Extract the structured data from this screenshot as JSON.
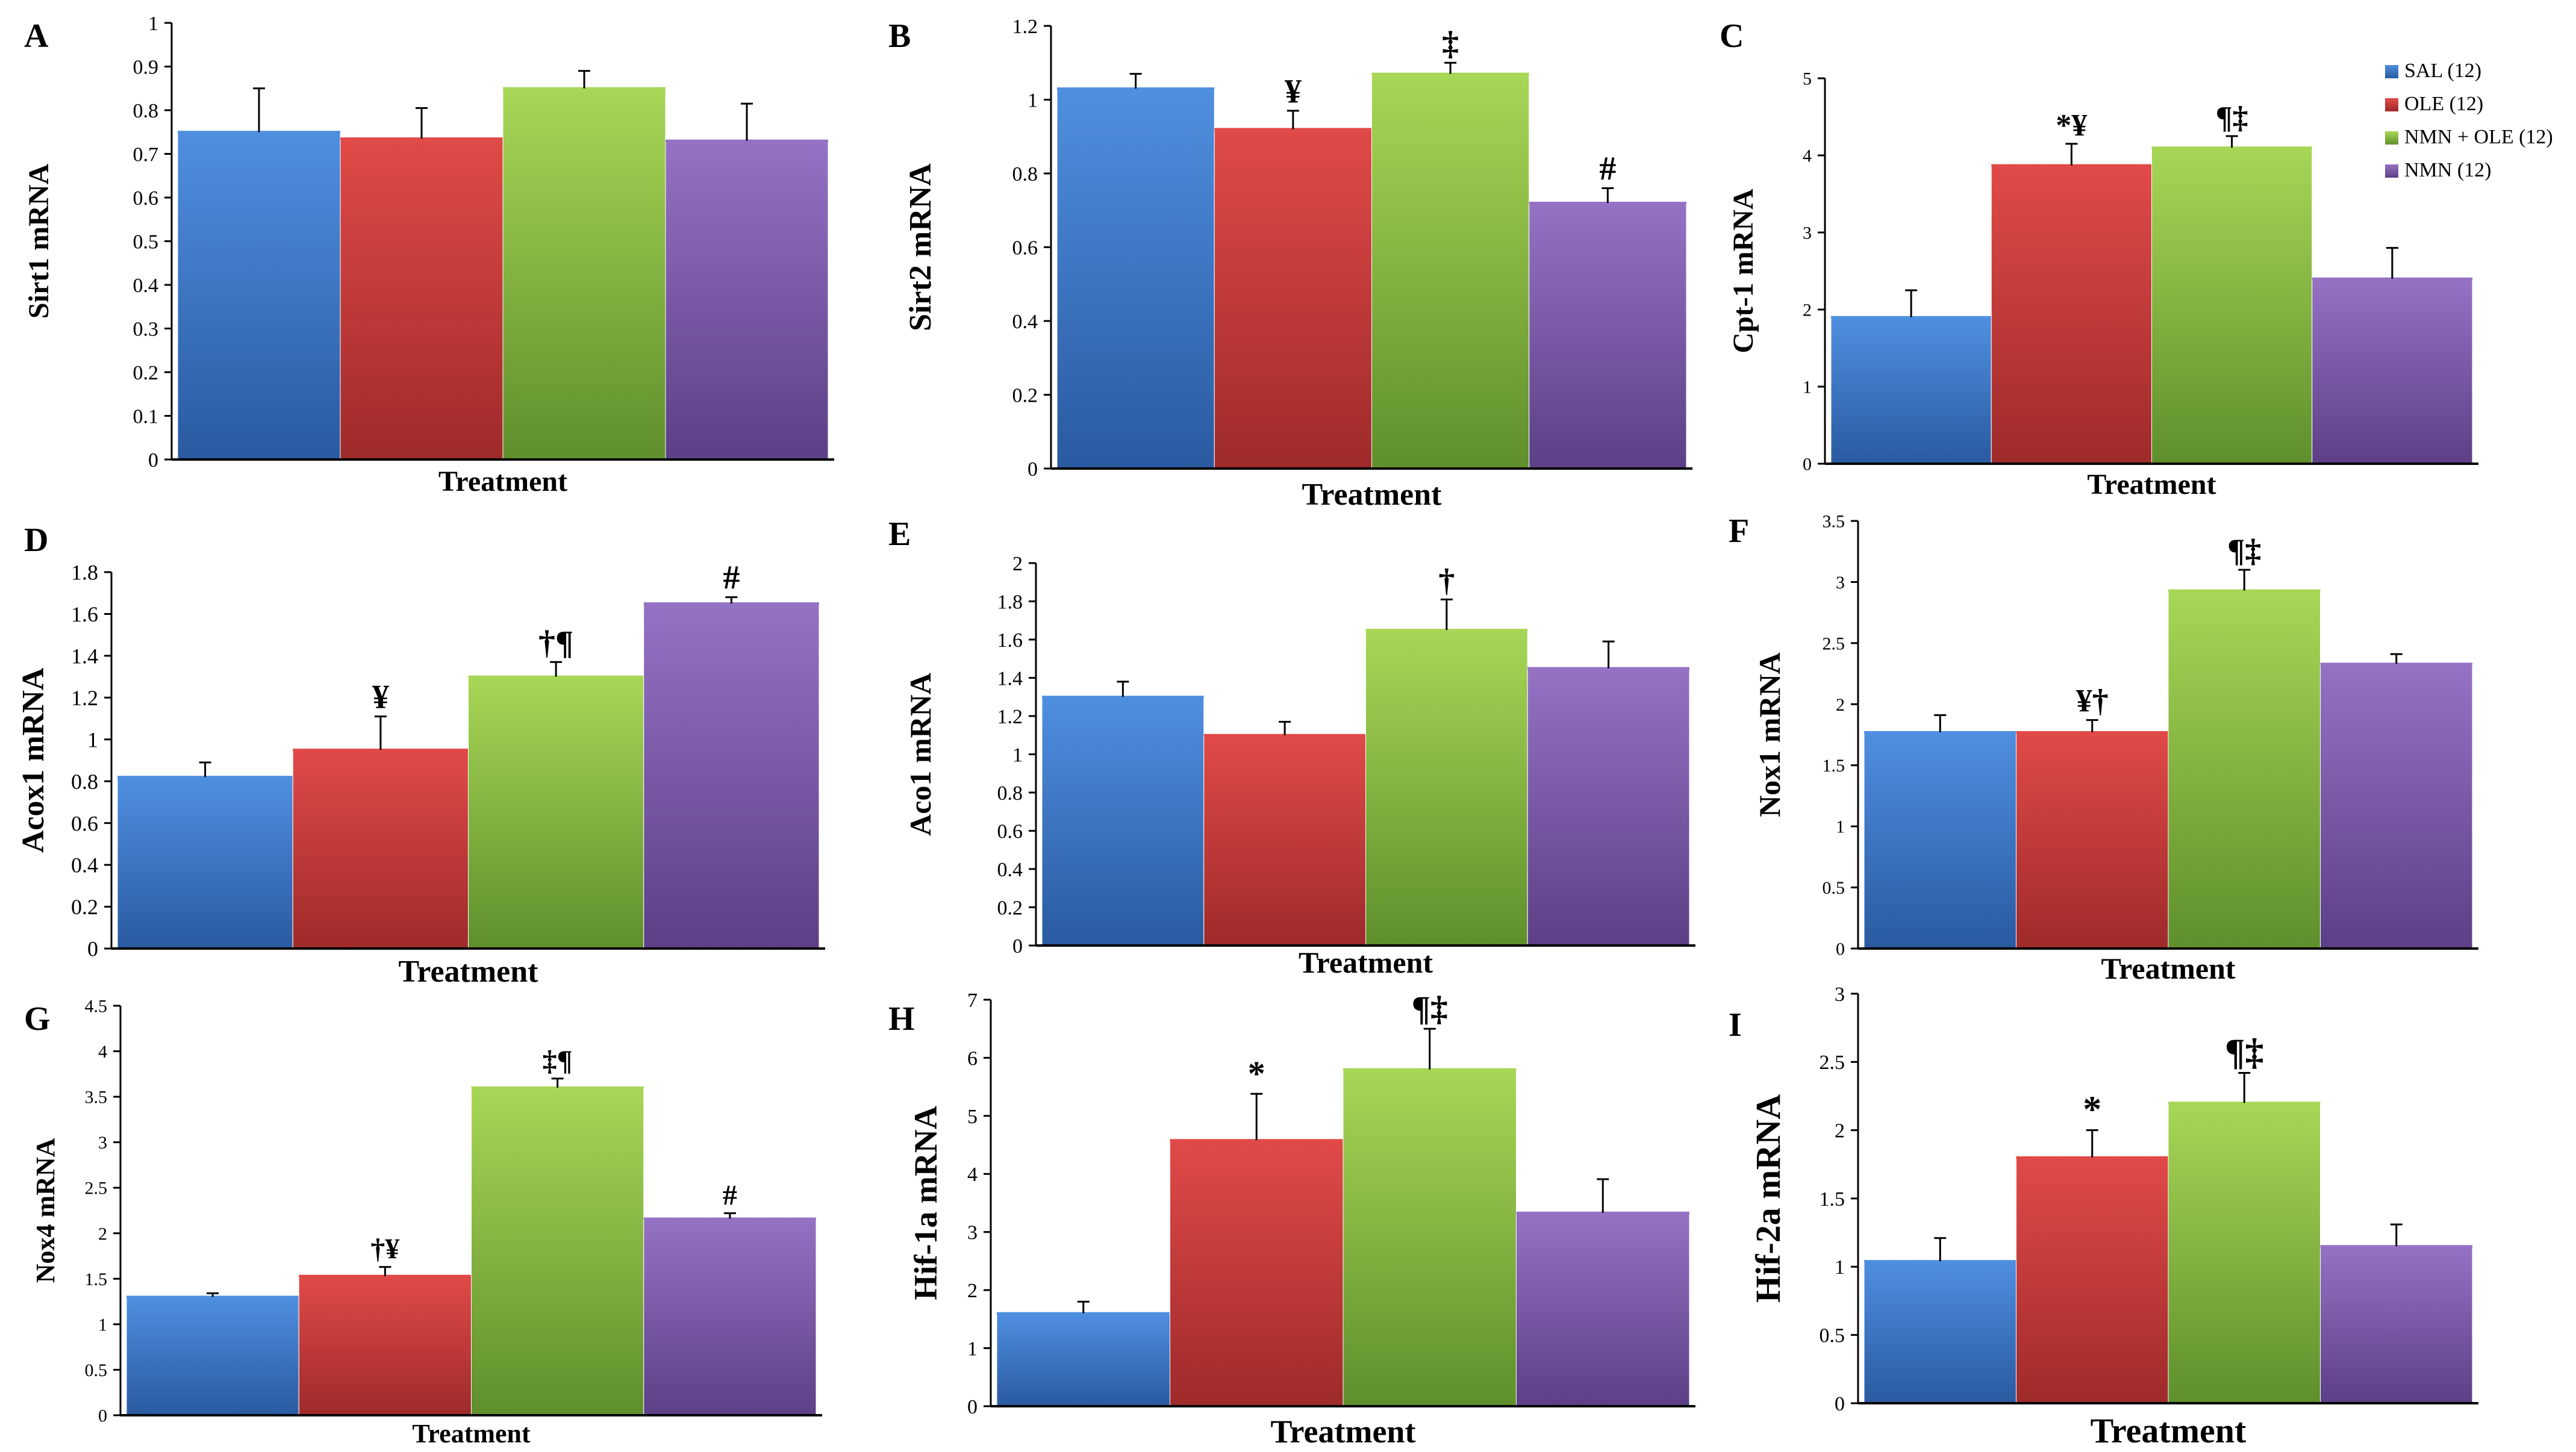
{
  "legend": {
    "entries": [
      {
        "label": "SAL (12)",
        "color": "#4a86d4"
      },
      {
        "label": "OLE (12)",
        "color": "#d94141"
      },
      {
        "label": "NMN + OLE (12)",
        "color": "#9bc845"
      },
      {
        "label": "NMN (12)",
        "color": "#8a62b5"
      }
    ],
    "placement": "top-right of panel C"
  },
  "chart_data": [
    {
      "type": "bar",
      "panel": "A",
      "ylabel": "Sirt1 mRNA",
      "xlabel": "Treatment",
      "categories": [
        "SAL (12)",
        "OLE (12)",
        "NMN + OLE (12)",
        "NMN (12)"
      ],
      "values": [
        0.75,
        0.735,
        0.85,
        0.73
      ],
      "errors": [
        0.1,
        0.07,
        0.04,
        0.085
      ],
      "annotations": [
        "",
        "",
        "",
        ""
      ],
      "ylim": [
        0,
        1
      ],
      "yticks": [
        "0",
        "0.1",
        "0.2",
        "0.3",
        "0.4",
        "0.5",
        "0.6",
        "0.7",
        "0.8",
        "0.9",
        "1"
      ]
    },
    {
      "type": "bar",
      "panel": "B",
      "ylabel": "Sirt2 mRNA",
      "xlabel": "Treatment",
      "categories": [
        "SAL (12)",
        "OLE (12)",
        "NMN + OLE (12)",
        "NMN (12)"
      ],
      "values": [
        1.03,
        0.92,
        1.07,
        0.72
      ],
      "errors": [
        0.04,
        0.05,
        0.03,
        0.04
      ],
      "annotations": [
        "",
        "¥",
        "‡",
        "#"
      ],
      "ylim": [
        0,
        1.2
      ],
      "yticks": [
        "0",
        "0.2",
        "0.4",
        "0.6",
        "0.8",
        "1",
        "1.2"
      ]
    },
    {
      "type": "bar",
      "panel": "C",
      "ylabel": "Cpt-1 mRNA",
      "xlabel": "Treatment",
      "categories": [
        "SAL (12)",
        "OLE (12)",
        "NMN + OLE (12)",
        "NMN (12)"
      ],
      "values": [
        1.9,
        3.87,
        4.1,
        2.4
      ],
      "errors": [
        0.35,
        0.28,
        0.15,
        0.4
      ],
      "annotations": [
        "",
        "*¥",
        "¶‡",
        ""
      ],
      "ylim": [
        0,
        5
      ],
      "yticks": [
        "0",
        "1",
        "2",
        "3",
        "4",
        "5"
      ]
    },
    {
      "type": "bar",
      "panel": "D",
      "ylabel": "Acox1 mRNA",
      "xlabel": "Treatment",
      "categories": [
        "SAL (12)",
        "OLE (12)",
        "NMN + OLE (12)",
        "NMN (12)"
      ],
      "values": [
        0.82,
        0.95,
        1.3,
        1.65
      ],
      "errors": [
        0.07,
        0.16,
        0.07,
        0.03
      ],
      "annotations": [
        "",
        "¥",
        "†¶",
        "#"
      ],
      "ylim": [
        0,
        1.8
      ],
      "yticks": [
        "0",
        "0.2",
        "0.4",
        "0.6",
        "0.8",
        "1",
        "1.2",
        "1.4",
        "1.6",
        "1.8"
      ]
    },
    {
      "type": "bar",
      "panel": "E",
      "ylabel": "Aco1 mRNA",
      "xlabel": "Treatment",
      "categories": [
        "SAL (12)",
        "OLE (12)",
        "NMN + OLE (12)",
        "NMN (12)"
      ],
      "values": [
        1.3,
        1.1,
        1.65,
        1.45
      ],
      "errors": [
        0.08,
        0.07,
        0.16,
        0.14
      ],
      "annotations": [
        "",
        "",
        "†",
        ""
      ],
      "ylim": [
        0,
        2
      ],
      "yticks": [
        "0",
        "0.2",
        "0.4",
        "0.6",
        "0.8",
        "1",
        "1.2",
        "1.4",
        "1.6",
        "1.8",
        "2"
      ]
    },
    {
      "type": "bar",
      "panel": "F",
      "ylabel": "Nox1 mRNA",
      "xlabel": "Treatment",
      "categories": [
        "SAL (12)",
        "OLE (12)",
        "NMN + OLE (12)",
        "NMN (12)"
      ],
      "values": [
        1.77,
        1.77,
        2.93,
        2.33
      ],
      "errors": [
        0.14,
        0.1,
        0.17,
        0.08
      ],
      "annotations": [
        "",
        "¥†",
        "¶‡",
        ""
      ],
      "ylim": [
        0,
        3.5
      ],
      "yticks": [
        "0",
        "0.5",
        "1",
        "1.5",
        "2",
        "2.5",
        "3",
        "3.5"
      ]
    },
    {
      "type": "bar",
      "panel": "G",
      "ylabel": "Nox4 mRNA",
      "xlabel": "Treatment",
      "categories": [
        "SAL (12)",
        "OLE (12)",
        "NMN + OLE (12)",
        "NMN (12)"
      ],
      "values": [
        1.3,
        1.53,
        3.6,
        2.16
      ],
      "errors": [
        0.04,
        0.1,
        0.1,
        0.06
      ],
      "annotations": [
        "",
        "†¥",
        "‡¶",
        "#"
      ],
      "ylim": [
        0,
        4.5
      ],
      "yticks": [
        "0",
        "0.5",
        "1",
        "1.5",
        "2",
        "2.5",
        "3",
        "3.5",
        "4",
        "4.5"
      ]
    },
    {
      "type": "bar",
      "panel": "H",
      "ylabel": "Hif-1a mRNA",
      "xlabel": "Treatment",
      "categories": [
        "SAL (12)",
        "OLE (12)",
        "NMN + OLE (12)",
        "NMN (12)"
      ],
      "values": [
        1.6,
        4.58,
        5.8,
        3.33
      ],
      "errors": [
        0.2,
        0.8,
        0.7,
        0.58
      ],
      "annotations": [
        "",
        "*",
        "¶‡",
        ""
      ],
      "ylim": [
        0,
        7
      ],
      "yticks": [
        "0",
        "1",
        "2",
        "3",
        "4",
        "5",
        "6",
        "7"
      ]
    },
    {
      "type": "bar",
      "panel": "I",
      "ylabel": "Hif-2a  mRNA",
      "xlabel": "Treatment",
      "categories": [
        "SAL (12)",
        "OLE (12)",
        "NMN + OLE (12)",
        "NMN (12)"
      ],
      "values": [
        1.04,
        1.8,
        2.2,
        1.15
      ],
      "errors": [
        0.17,
        0.2,
        0.22,
        0.16
      ],
      "annotations": [
        "",
        "*",
        "¶‡",
        ""
      ],
      "ylim": [
        0,
        3
      ],
      "yticks": [
        "0",
        "0.5",
        "1",
        "1.5",
        "2",
        "2.5",
        "3"
      ]
    }
  ]
}
